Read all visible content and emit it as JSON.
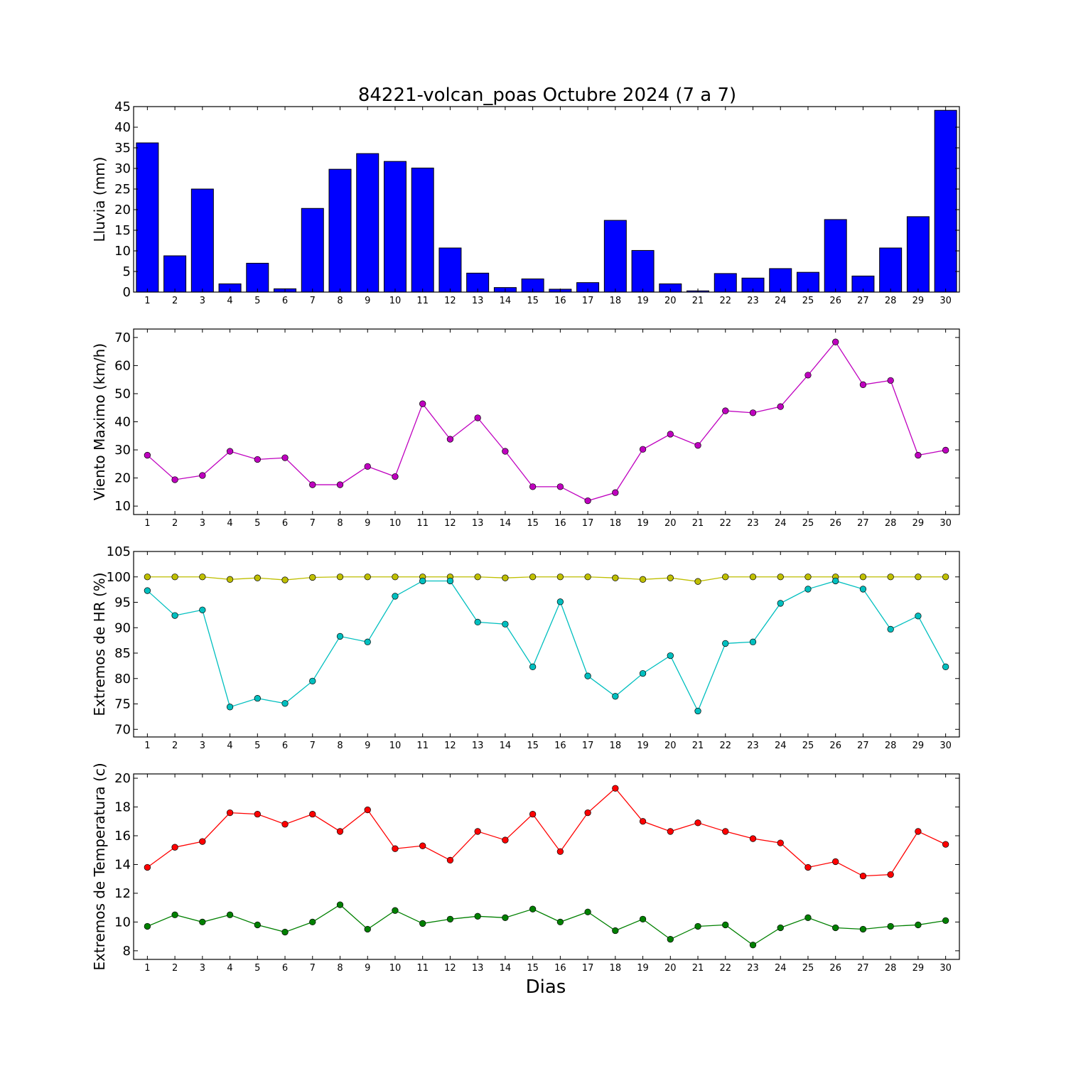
{
  "title": "84221-volcan_poas Octubre 2024  (7 a 7)",
  "xlabel": "Dias",
  "chart_data": [
    {
      "type": "bar",
      "ylabel": "Lluvia (mm)",
      "ylim": [
        0,
        45
      ],
      "yticks": [
        0,
        5,
        10,
        15,
        20,
        25,
        30,
        35,
        40,
        45
      ],
      "categories": [
        1,
        2,
        3,
        4,
        5,
        6,
        7,
        8,
        9,
        10,
        11,
        12,
        13,
        14,
        15,
        16,
        17,
        18,
        19,
        20,
        21,
        22,
        23,
        24,
        25,
        26,
        27,
        28,
        29,
        30
      ],
      "series": [
        {
          "color": "#0000ff",
          "values": [
            36.2,
            8.8,
            25.0,
            2.0,
            7.0,
            0.8,
            20.3,
            29.8,
            33.6,
            31.7,
            30.1,
            10.7,
            4.6,
            1.1,
            3.2,
            0.7,
            2.3,
            17.4,
            10.1,
            2.0,
            0.3,
            4.5,
            3.4,
            5.7,
            4.8,
            17.6,
            3.9,
            10.7,
            18.3,
            44.1
          ]
        }
      ]
    },
    {
      "type": "line",
      "ylabel": "Viento Maximo (km/h)",
      "ylim": [
        7,
        73
      ],
      "yticks": [
        10,
        20,
        30,
        40,
        50,
        60,
        70
      ],
      "x": [
        1,
        2,
        3,
        4,
        5,
        6,
        7,
        8,
        9,
        10,
        11,
        12,
        13,
        14,
        15,
        16,
        17,
        18,
        19,
        20,
        21,
        22,
        23,
        24,
        25,
        26,
        27,
        28,
        29,
        30
      ],
      "series": [
        {
          "color": "#bf00bf",
          "values": [
            28.1,
            19.4,
            20.9,
            29.5,
            26.6,
            27.2,
            17.6,
            17.6,
            24.1,
            20.5,
            46.4,
            33.8,
            41.4,
            29.5,
            16.9,
            16.9,
            11.9,
            14.8,
            30.2,
            35.6,
            31.6,
            43.9,
            43.2,
            45.4,
            56.6,
            68.4,
            53.2,
            54.7,
            28.1,
            29.9
          ]
        }
      ]
    },
    {
      "type": "line",
      "ylabel": "Extremos de HR (%)",
      "ylim": [
        68.5,
        105
      ],
      "yticks": [
        70,
        75,
        80,
        85,
        90,
        95,
        100,
        105
      ],
      "x": [
        1,
        2,
        3,
        4,
        5,
        6,
        7,
        8,
        9,
        10,
        11,
        12,
        13,
        14,
        15,
        16,
        17,
        18,
        19,
        20,
        21,
        22,
        23,
        24,
        25,
        26,
        27,
        28,
        29,
        30
      ],
      "series": [
        {
          "color": "#bfbf00",
          "values": [
            100,
            100,
            100,
            99.5,
            99.8,
            99.4,
            99.9,
            100,
            100,
            100,
            100,
            100,
            100,
            99.8,
            100,
            100,
            100,
            99.8,
            99.5,
            99.8,
            99.1,
            100,
            100,
            100,
            100,
            100,
            100,
            100,
            100,
            100
          ]
        },
        {
          "color": "#00bfbf",
          "values": [
            97.3,
            92.4,
            93.5,
            74.4,
            76.1,
            75.1,
            79.5,
            88.3,
            87.2,
            96.2,
            99.2,
            99.2,
            91.1,
            90.7,
            82.3,
            95.1,
            80.5,
            76.5,
            81.0,
            84.5,
            73.6,
            86.9,
            87.2,
            94.8,
            97.6,
            99.2,
            97.6,
            89.7,
            92.3,
            82.3
          ]
        }
      ]
    },
    {
      "type": "line",
      "ylabel": "Extremos de Temperatura (c)",
      "ylim": [
        7.4,
        20.3
      ],
      "yticks": [
        8,
        10,
        12,
        14,
        16,
        18,
        20
      ],
      "x": [
        1,
        2,
        3,
        4,
        5,
        6,
        7,
        8,
        9,
        10,
        11,
        12,
        13,
        14,
        15,
        16,
        17,
        18,
        19,
        20,
        21,
        22,
        23,
        24,
        25,
        26,
        27,
        28,
        29,
        30
      ],
      "series": [
        {
          "color": "#ff0000",
          "values": [
            13.8,
            15.2,
            15.6,
            17.6,
            17.5,
            16.8,
            17.5,
            16.3,
            17.8,
            15.1,
            15.3,
            14.3,
            16.3,
            15.7,
            17.5,
            14.9,
            17.6,
            19.3,
            17.0,
            16.3,
            16.9,
            16.3,
            15.8,
            15.5,
            13.8,
            14.2,
            13.2,
            13.3,
            16.3,
            15.4
          ]
        },
        {
          "color": "#008000",
          "values": [
            9.7,
            10.5,
            10.0,
            10.5,
            9.8,
            9.3,
            10.0,
            11.2,
            9.5,
            10.8,
            9.9,
            10.2,
            10.4,
            10.3,
            10.9,
            10.0,
            10.7,
            9.4,
            10.2,
            8.8,
            9.7,
            9.8,
            8.4,
            9.6,
            10.3,
            9.6,
            9.5,
            9.7,
            9.8,
            10.1
          ]
        }
      ]
    }
  ]
}
